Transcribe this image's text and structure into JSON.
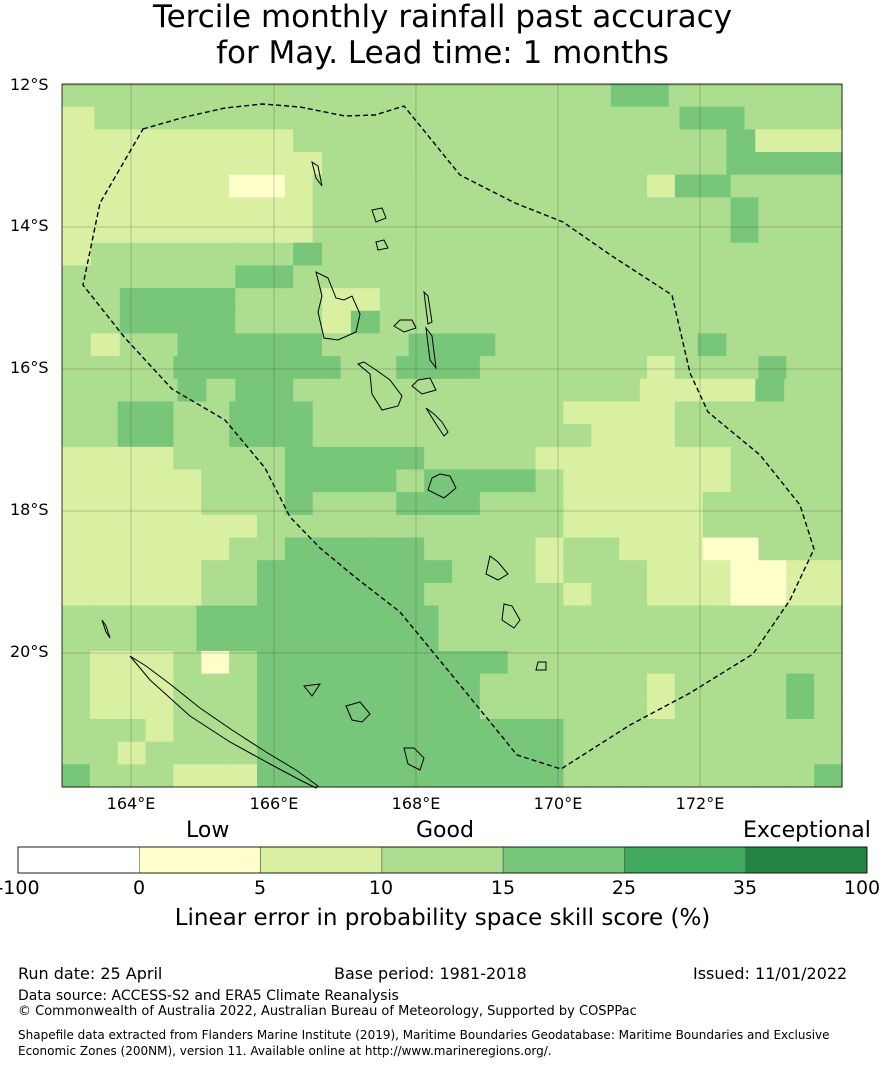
{
  "title_line1": "Tercile monthly rainfall past accuracy",
  "title_line2": "for May. Lead time: 1 months",
  "lat_labels": [
    "12°S",
    "14°S",
    "16°S",
    "18°S",
    "20°S"
  ],
  "lon_labels": [
    "164°E",
    "166°E",
    "168°E",
    "170°E",
    "172°E"
  ],
  "grid_colors": {
    "1": "#ffffcc",
    "2": "#d9f0a3",
    "3": "#addd8e",
    "4": "#78c679",
    "5": "#41ab5d",
    "6": "#238443"
  },
  "grid": [
    "333333333333333333344333333",
    "233333333333333333344333",
    "222222223333333333333334222",
    "222222222333333333333334444",
    "2222221123333333333332443333",
    "2222222223333333333333334333",
    "2222222223333333333333334333",
    "233333334333333333333333333",
    "333333443333333333333333333",
    "334444333223333333333333333",
    "334444333243333333333333333",
    "323344444333444333333343333",
    "3333444444334443333332333433",
    "333343443333333333332222433",
    "3344334443333333332222333333",
    "3344334443333333333222333333",
    "2222333344444333322222223333",
    "2222233344443444432222223333",
    "2222233343334443332222233333",
    "2222222333333333332222233333",
    "2222223344444333323322211333",
    "2222233444444433323332221122",
    "2222233444444333332332221122",
    "33333444444444333333333333333",
    "33333444444444333333333333333",
    "3222313444444444333333333333",
    "3222333444444443333332333343",
    "3222333444444443333332333343",
    "3332333444444444443333333333",
    "3323333444444444443333333333",
    "4333222444444444443333333334"
  ],
  "legend": {
    "categories": [
      "Low",
      "Good",
      "Exceptional"
    ],
    "ticks": [
      "-100",
      "0",
      "5",
      "10",
      "15",
      "25",
      "35",
      "100"
    ],
    "colors": [
      "#ffffff",
      "#ffffcc",
      "#d9f0a3",
      "#addd8e",
      "#78c679",
      "#41ab5d",
      "#238443"
    ],
    "title": "Linear error in probability space skill score (%)"
  },
  "footer": {
    "run_date": "Run date: 25 April",
    "base_period": "Base period: 1981-2018",
    "issued": "Issued: 11/01/2022",
    "data_source": "Data source: ACCESS-S2 and ERA5 Climate Reanalysis",
    "copyright": "© Commonwealth of Australia 2022, Australian Bureau of Meteorology, Supported by COSPPac",
    "shapefile_line1": "Shapefile data extracted from Flanders Marine Institute (2019), Maritime Boundaries Geodatabase: Maritime Boundaries and Exclusive",
    "shapefile_line2": "Economic Zones (200NM), version 11. Available online at http://www.marineregions.org/."
  }
}
